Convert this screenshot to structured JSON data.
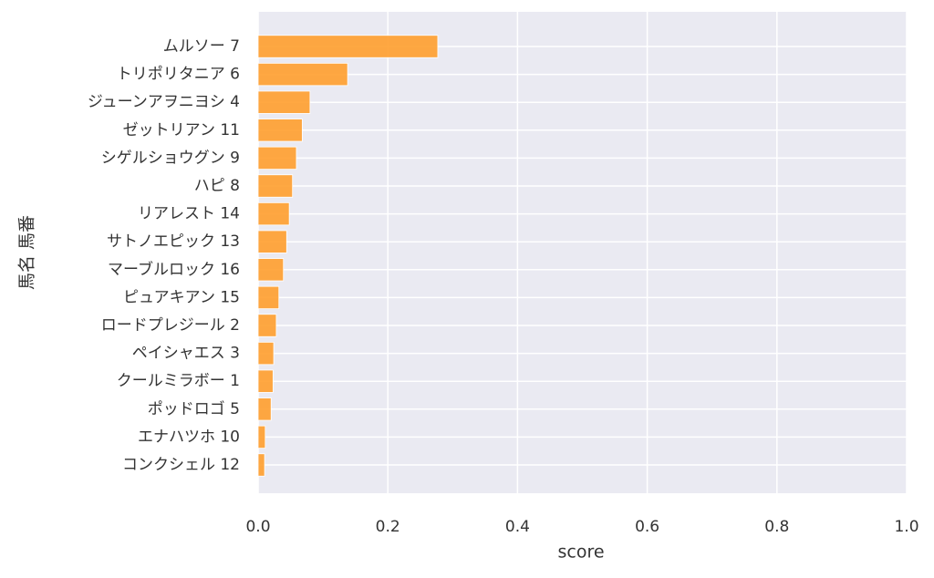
{
  "chart_data": {
    "type": "barh",
    "x_label": "score",
    "y_label": "馬名 馬番",
    "categories": [
      "ムルソー 7",
      "トリポリタニア 6",
      "ジューンアヲニヨシ 4",
      "ゼットリアン 11",
      "シゲルショウグン 9",
      "ハピ 8",
      "リアレスト 14",
      "サトノエピック 13",
      "マーブルロック 16",
      "ピュアキアン 15",
      "ロードプレジール 2",
      "ペイシャエス 3",
      "クールミラボー 1",
      "ポッドロゴ 5",
      "エナハツホ 10",
      "コンクシェル 12"
    ],
    "values": [
      0.277,
      0.138,
      0.08,
      0.068,
      0.059,
      0.053,
      0.048,
      0.044,
      0.039,
      0.032,
      0.028,
      0.024,
      0.023,
      0.02,
      0.011,
      0.01
    ],
    "color": "#ff9f2e",
    "xlim": [
      0,
      1
    ],
    "xticks": [
      {
        "value": 0,
        "label": "0.0"
      },
      0.2,
      0.4,
      0.6,
      0.8,
      {
        "value": 1,
        "label": "1.0"
      }
    ],
    "grid": true
  }
}
